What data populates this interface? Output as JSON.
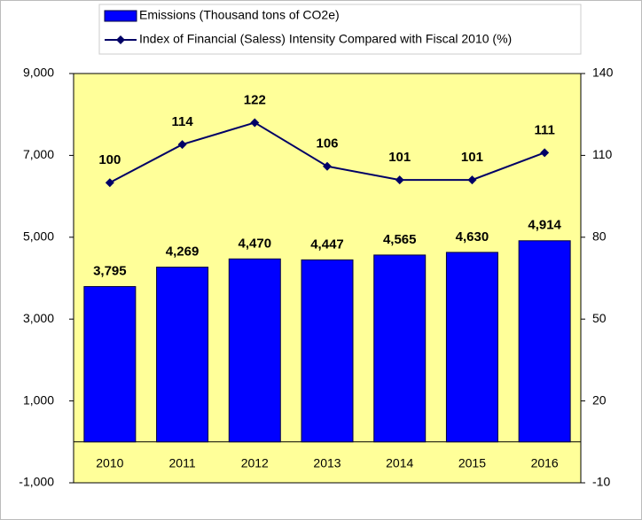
{
  "chart_data": {
    "type": "bar",
    "categories": [
      "2010",
      "2011",
      "2012",
      "2013",
      "2014",
      "2015",
      "2016"
    ],
    "series": [
      {
        "name": "Emissions (Thousand tons of CO2e)",
        "type": "bar",
        "color": "#0000ff",
        "values": [
          3795,
          4269,
          4470,
          4447,
          4565,
          4630,
          4914
        ],
        "value_labels": [
          "3,795",
          "4,269",
          "4,470",
          "4,447",
          "4,565",
          "4,630",
          "4,914"
        ]
      },
      {
        "name": "Index of Financial (Saless) Intensity Compared with Fiscal 2010 (%)",
        "type": "line",
        "axis": "y2",
        "color": "#000066",
        "values": [
          100,
          114,
          122,
          106,
          101,
          101,
          111
        ]
      }
    ],
    "ylim": [
      -1000,
      9000
    ],
    "yticks": [
      {
        "value": -1000,
        "label": "-1,000"
      },
      {
        "value": 1000,
        "label": "1,000"
      },
      {
        "value": 3000,
        "label": "3,000"
      },
      {
        "value": 5000,
        "label": "5,000"
      },
      {
        "value": 7000,
        "label": "7,000"
      },
      {
        "value": 9000,
        "label": "9,000"
      }
    ],
    "y2lim": [
      -10,
      140
    ],
    "y2ticks": [
      -10,
      20,
      50,
      80,
      110,
      140
    ],
    "plot_background": "#ffff99",
    "grid": false,
    "legend": "top"
  }
}
